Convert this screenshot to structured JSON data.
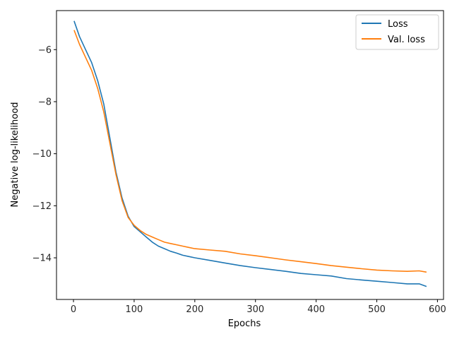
{
  "chart_data": {
    "type": "line",
    "title": "",
    "xlabel": "Epochs",
    "ylabel": "Negative log-likelihood",
    "xlim": [
      -28,
      610
    ],
    "ylim": [
      -15.6,
      -4.5
    ],
    "xticks": [
      0,
      100,
      200,
      300,
      400,
      500,
      600
    ],
    "yticks": [
      -14,
      -12,
      -10,
      -8,
      -6
    ],
    "xtick_labels": [
      "0",
      "100",
      "200",
      "300",
      "400",
      "500",
      "600"
    ],
    "ytick_labels": [
      "−14",
      "−12",
      "−10",
      "−8",
      "−6"
    ],
    "grid": false,
    "legend_placement": "top-right",
    "series": [
      {
        "name": "Loss",
        "color": "#1f77b4",
        "x": [
          1,
          10,
          20,
          30,
          40,
          50,
          60,
          70,
          80,
          90,
          100,
          110,
          120,
          130,
          140,
          150,
          160,
          170,
          180,
          190,
          200,
          225,
          250,
          275,
          300,
          325,
          350,
          375,
          400,
          425,
          450,
          475,
          500,
          525,
          550,
          570,
          582
        ],
        "y": [
          -4.9,
          -5.5,
          -6.0,
          -6.5,
          -7.2,
          -8.1,
          -9.4,
          -10.7,
          -11.7,
          -12.4,
          -12.8,
          -13.0,
          -13.2,
          -13.4,
          -13.55,
          -13.65,
          -13.75,
          -13.82,
          -13.9,
          -13.95,
          -14.0,
          -14.1,
          -14.2,
          -14.3,
          -14.38,
          -14.45,
          -14.52,
          -14.6,
          -14.65,
          -14.7,
          -14.8,
          -14.85,
          -14.9,
          -14.95,
          -15.0,
          -15.0,
          -15.1
        ]
      },
      {
        "name": "Val. loss",
        "color": "#ff7f0e",
        "x": [
          1,
          10,
          20,
          30,
          40,
          50,
          60,
          70,
          80,
          90,
          100,
          110,
          120,
          130,
          140,
          150,
          160,
          170,
          180,
          190,
          200,
          225,
          250,
          275,
          300,
          325,
          350,
          375,
          400,
          425,
          450,
          475,
          500,
          525,
          550,
          570,
          582
        ],
        "y": [
          -5.25,
          -5.8,
          -6.3,
          -6.8,
          -7.5,
          -8.4,
          -9.6,
          -10.8,
          -11.8,
          -12.45,
          -12.75,
          -12.95,
          -13.1,
          -13.2,
          -13.3,
          -13.4,
          -13.45,
          -13.5,
          -13.55,
          -13.6,
          -13.65,
          -13.7,
          -13.75,
          -13.85,
          -13.92,
          -14.0,
          -14.08,
          -14.15,
          -14.22,
          -14.3,
          -14.36,
          -14.42,
          -14.47,
          -14.5,
          -14.52,
          -14.5,
          -14.55
        ]
      }
    ]
  }
}
